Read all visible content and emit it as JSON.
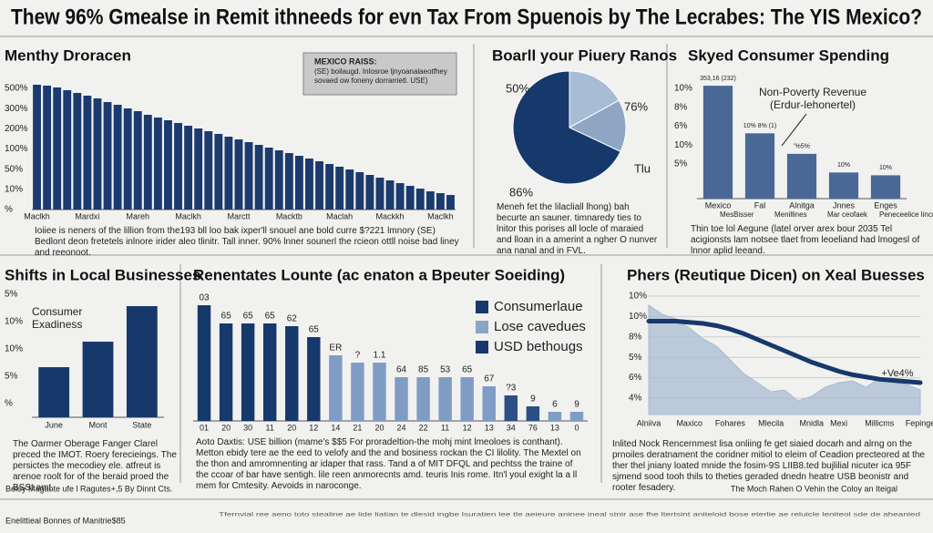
{
  "title": "Thew 96% Gmealse in Remit ithneeds for evn Tax From Spuenois by The Lecrabes: The YIS Mexico?",
  "chart_data": [
    {
      "type": "bar",
      "title": "Menthy Droracen",
      "note_title": "MEXICO RAISS:",
      "note_text": "(SE) boilaugd. Inlosroe ljnyoanalaeotfhey sovaed ow foneny dorrarrietl. USE)",
      "y_axis_labels": [
        "500%",
        "300%",
        "200%",
        "100%",
        "50%",
        "10%",
        "%"
      ],
      "categories": [
        "Maclkh",
        null,
        null,
        null,
        null,
        "Mardxi",
        null,
        null,
        null,
        null,
        "Mareh",
        null,
        null,
        null,
        null,
        "Maclkh",
        null,
        null,
        null,
        null,
        "Marctt",
        null,
        null,
        null,
        null,
        "Macktb",
        null,
        null,
        null,
        null,
        "Maclah",
        null,
        null,
        null,
        null,
        "Mackkh",
        null,
        null,
        null,
        null,
        "Maclkh",
        null
      ],
      "values": [
        137,
        136,
        134,
        131,
        128,
        125,
        122,
        118,
        115,
        111,
        108,
        104,
        101,
        98,
        95,
        92,
        89,
        86,
        83,
        80,
        77,
        74,
        71,
        68,
        65,
        62,
        59,
        56,
        53,
        50,
        47,
        44,
        41,
        38,
        35,
        32,
        29,
        26,
        23,
        20,
        18,
        16
      ],
      "color": "#1b3a6e",
      "ylim": [
        0,
        140
      ],
      "caption": "Ioiiee is neners of the lillion from the193 bll loo bak ixper'll snouel ane bold curre $?221 lmnory (SE) Bedlont deon fretetels inlnore irider aleo tlinitr. Tall inner. 90% lnner sounerl the rcieon ottll noise bad liney and reeonoot."
    },
    {
      "type": "pie",
      "title": "Boarll your Piuery Ranos",
      "values": [
        17,
        15,
        68
      ],
      "colors": [
        "#a9bcd6",
        "#8ea6c4",
        "#17386b"
      ],
      "annotations": [
        "50%",
        "76%",
        "86%",
        "Tlu"
      ],
      "caption": "Meneh fet the lilacliall lhong) bah becurte an sauner. timnaredy ties to lnitor this porises all locle of maraied and lloan in a amerint a ngher O nunver ana nanal and in FVL."
    },
    {
      "type": "bar",
      "title": "Skyed Consumer Spending",
      "y_axis_labels": [
        "10%",
        "8%",
        "6%",
        "10%",
        "5%"
      ],
      "categories": [
        "Mexico",
        "Fal",
        "Alnitga",
        "Jnnes",
        "Enges"
      ],
      "values": [
        121,
        70,
        48,
        28,
        25
      ],
      "color": "#4a6896",
      "ylim": [
        0,
        125
      ],
      "bar_notes": [
        "353,16 (232)",
        "10% 8% (1)",
        "'%5%",
        "10%",
        "10%"
      ],
      "annotation": [
        "Non-Poverty Revenue",
        "(Erdur-lehonertel)"
      ],
      "legend_items": [
        "MesBisser",
        "Menillines",
        "Mar ceofaek",
        "Peneceelice lincnarse"
      ],
      "caption": "Thin toe lol Aegune (latel orver arex bour 2035 Tel acigionsts lam notsee tlaet from leoeliand had lmogesl of lnnor aplid leeand."
    },
    {
      "type": "bar",
      "title": "Shifts in Local Businesses",
      "y_axis_labels": [
        "5%",
        "10%",
        "10%",
        "5%",
        "%"
      ],
      "categories": [
        "June",
        "Mont",
        "State"
      ],
      "values": [
        55,
        83,
        122
      ],
      "color": "#17386b",
      "ylim": [
        0,
        135
      ],
      "annotation": [
        "Consumer",
        "Exadiness"
      ],
      "caption": "The Oarmer Oberage Fanger Clarel preced the IMOT. Roery ferecieings. The persictes the mecodiey ele. atfreut is arenoe roolt for of the beraid proed the BSSt amt."
    },
    {
      "type": "bar",
      "title": "Renentates Lounte (ac enaton a Bpeuter Soeiding)",
      "categories": [
        "01",
        "20",
        "30",
        "11",
        "20",
        "12",
        "14",
        "21",
        "20",
        "24",
        "22",
        "11",
        "12",
        "13",
        "34",
        "76",
        "13",
        "0"
      ],
      "values": [
        127,
        107,
        107,
        107,
        104,
        92,
        72,
        64,
        64,
        48,
        48,
        48,
        48,
        38,
        28,
        16,
        10,
        10
      ],
      "colors": [
        "#17386b",
        "#17386b",
        "#17386b",
        "#17386b",
        "#17386b",
        "#17386b",
        "#7f9cc4",
        "#7f9cc4",
        "#7f9cc4",
        "#7f9cc4",
        "#7f9cc4",
        "#7f9cc4",
        "#7f9cc4",
        "#7f9cc4",
        "#2b4f86",
        "#2b4f86",
        "#7f9cc4",
        "#7f9cc4"
      ],
      "ylim": [
        0,
        135
      ],
      "bar_notes": [
        "03",
        "65",
        "65",
        "65",
        "62",
        "65",
        "ER",
        "?",
        "1.1",
        "64",
        "85",
        "53",
        "65",
        "67",
        "?3",
        "9",
        "6",
        "9"
      ],
      "legend": [
        {
          "name": "Consumerlaue",
          "color": "#17386b"
        },
        {
          "name": "Lose cavedues",
          "color": "#8aa4c8"
        },
        {
          "name": "USD bethougs",
          "color": "#17386b"
        }
      ],
      "caption": "Aoto Daxtis: USE billion (mame's $$5 For proradeltion-the mohj mint lmeoloes is conthant). Metton ebidy tere ae the eed to velofy and the and bosiness rockan the CI lilolity. The Mextel on the thon and amromnenting ar idaper that rass. Tand a of MIT DFQL and pechtss the traine of the ccoar of bar have sentigh. lile reen anmorecnts amd. teuris Inis rome. Itn'l youl exight la a ll mem for Cmtesity. Aevoids in naroconge."
    },
    {
      "type": "line",
      "title": "Phers (Reutique Dicen) on Xeal Buesses",
      "y_axis_labels": [
        "10%",
        "10%",
        "8%",
        "5%",
        "6%",
        "4%"
      ],
      "x": [
        0,
        1,
        2,
        3,
        4,
        5,
        6,
        7,
        8,
        9,
        10,
        11,
        12,
        13,
        14,
        15,
        16,
        17,
        18,
        19,
        20
      ],
      "xlim": [
        0,
        20
      ],
      "xticks": [
        {
          "value": 0,
          "label": "Alniiva"
        },
        {
          "value": 3,
          "label": "Maxico"
        },
        {
          "value": 6,
          "label": "Fohares"
        },
        {
          "value": 9,
          "label": "Mlecila"
        },
        {
          "value": 12,
          "label": "Mnidla"
        },
        {
          "value": 14,
          "label": "Mexi"
        },
        {
          "value": 17,
          "label": "Millicms"
        },
        {
          "value": 20,
          "label": "Fepinge"
        }
      ],
      "ylim": [
        0,
        100
      ],
      "series": [
        {
          "fill": true,
          "color": "#a9bbd4",
          "values": [
            96,
            88,
            84,
            76,
            66.4,
            60,
            48,
            36,
            28,
            20,
            21.6,
            12,
            16,
            24,
            28,
            29.6,
            24,
            32,
            28,
            26.4,
            21.6
          ]
        },
        {
          "fill": false,
          "color": "#17386b",
          "values": [
            82,
            82,
            82,
            81,
            80,
            78,
            75,
            71,
            66,
            61,
            56,
            51,
            46,
            42,
            38,
            35,
            33,
            31,
            30,
            29,
            28
          ]
        }
      ],
      "annotation": "+Ve4%",
      "caption": "Inlited Nock Rencernmest lisa onliing fe get siaied docarh and alrng on the prnoiles deratnament the coridner mitiol to eleim of Ceadion precteored at the ther thel jniany loated mnide the fosim-9S LIIB8.ted bujlilial nicuter ica 95F sjmend sood tooh thils to theties geraded dnedn heatre USB beonistr and rooter fesadery."
    }
  ],
  "footer": {
    "left": "Beloy Magaote ufe l Ragutes+,5 By Dinnt Cts.",
    "left2": "Enelittieal Bonnes of Manitrie$85",
    "right": "The Moch Rahen O Vehin the Coloy an Iteigal",
    "fine_print": "Tfernvial ree aeno toto stealine ae lide liatian te dlesid ingbe lsuratien lee tle aeieure aninee ineal stnir ase fhe ltertsint aniteloid bose eterlie ae reluicle leniteol sde de aheanied"
  }
}
